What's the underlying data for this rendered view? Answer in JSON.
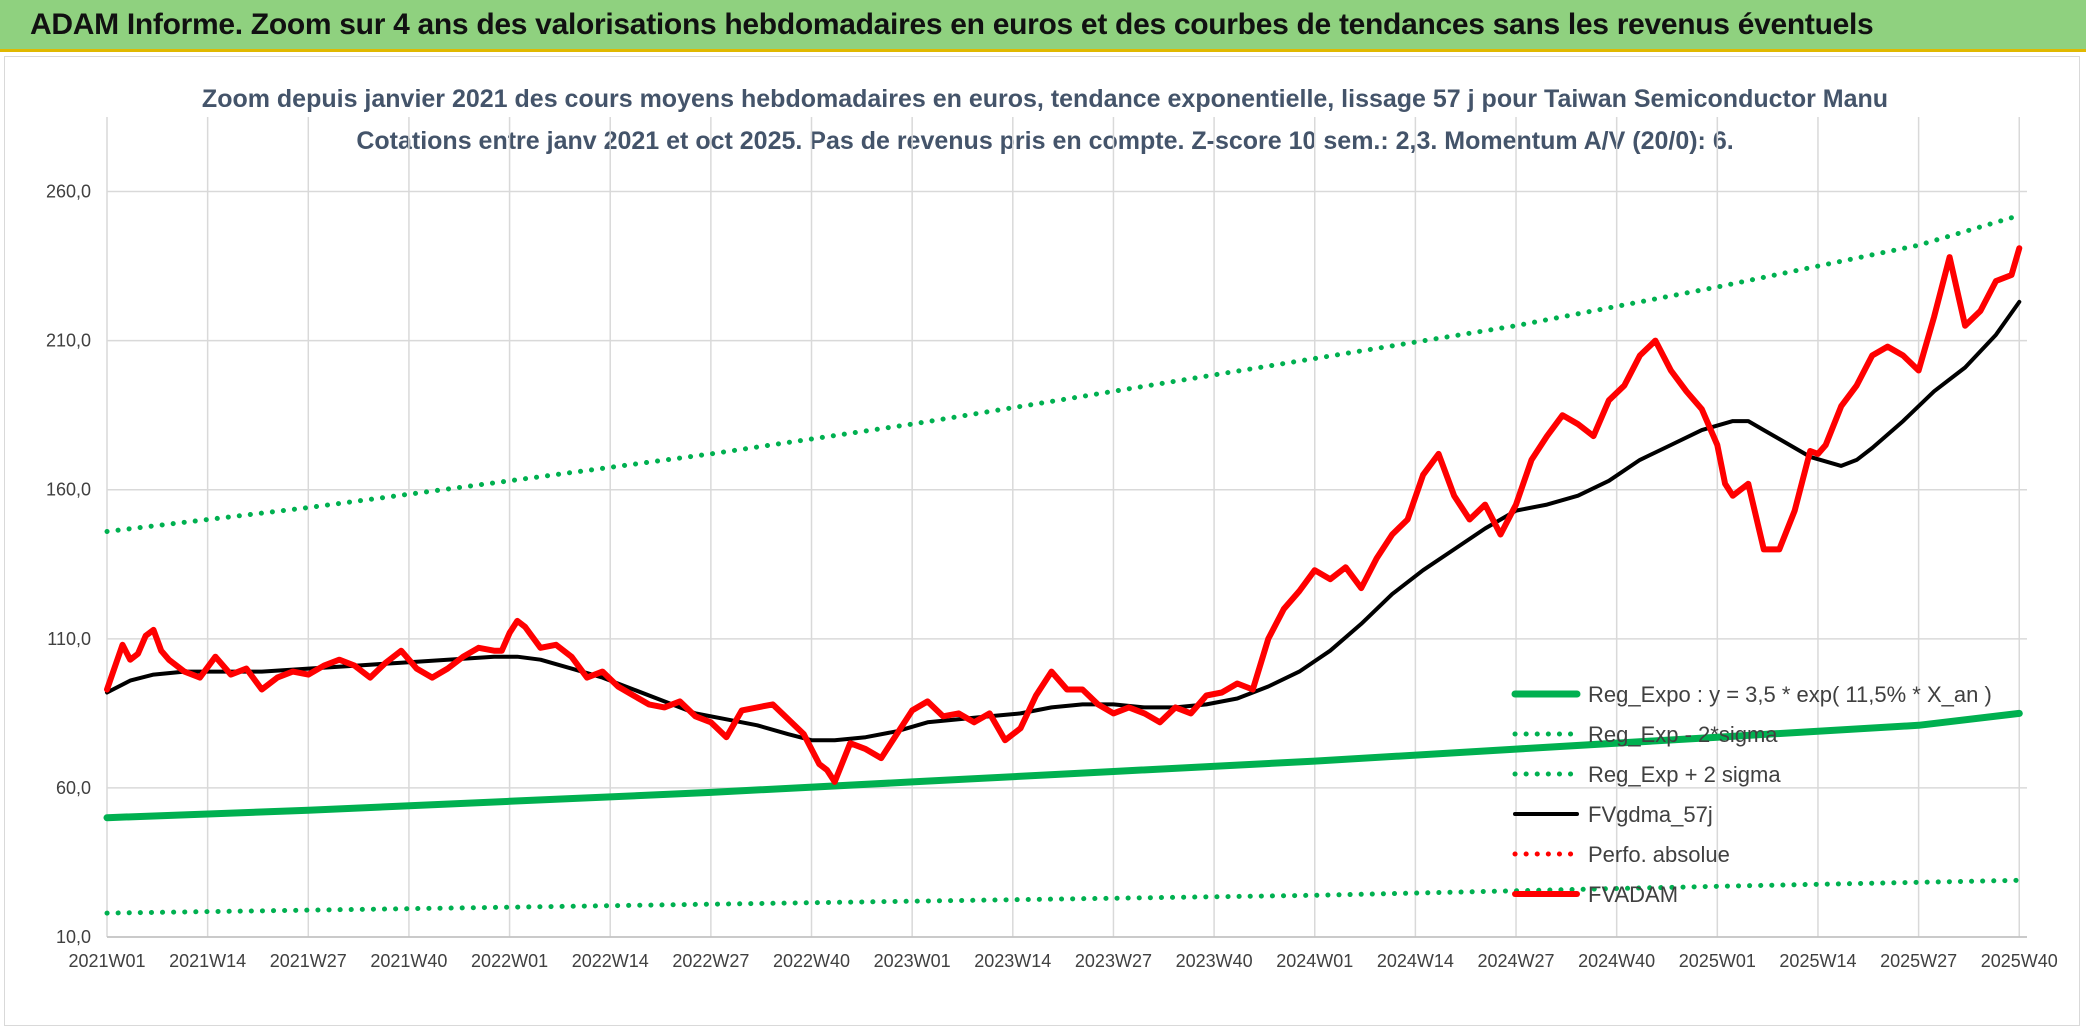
{
  "banner": {
    "title": "ADAM Informe. Zoom sur 4 ans des valorisations hebdomadaires en euros et des courbes de tendances sans les revenus éventuels"
  },
  "chart_data": {
    "type": "line",
    "title": "Zoom depuis janvier 2021 des cours moyens hebdomadaires en euros, tendance exponentielle, lissage 57 j pour Taiwan Semiconductor Manu",
    "subtitle": "Cotations entre janv 2021 et oct 2025. Pas de revenus pris en compte. Z-score 10 sem.: 2,3. Momentum A/V (20/0): 6.",
    "xlabel": "",
    "ylabel": "",
    "ylim": [
      10,
      285
    ],
    "yticks": [
      10,
      60,
      110,
      160,
      210,
      260
    ],
    "ytick_labels": [
      "10,0",
      "60,0",
      "110,0",
      "160,0",
      "210,0",
      "260,0"
    ],
    "x_range": [
      0,
      248
    ],
    "xticks": [
      0,
      13,
      26,
      39,
      52,
      65,
      78,
      91,
      104,
      117,
      130,
      143,
      156,
      169,
      182,
      195,
      208,
      221,
      234,
      247
    ],
    "xtick_labels": [
      "2021W01",
      "2021W14",
      "2021W27",
      "2021W40",
      "2022W01",
      "2022W14",
      "2022W27",
      "2022W40",
      "2023W01",
      "2023W14",
      "2023W27",
      "2023W40",
      "2024W01",
      "2024W14",
      "2024W27",
      "2024W40",
      "2025W01",
      "2025W14",
      "2025W27",
      "2025W40"
    ],
    "grid": true,
    "legend_position": "bottom-right",
    "series": [
      {
        "name": "Reg_Expo : y = 3,5 * exp( 11,5% *  X_an )",
        "style": "solid-thick",
        "color": "#00b050",
        "x": [
          0,
          26,
          52,
          78,
          104,
          130,
          156,
          182,
          208,
          234,
          247
        ],
        "y": [
          50,
          52.5,
          55.5,
          58.5,
          62,
          65.5,
          69,
          73,
          77,
          81,
          85
        ]
      },
      {
        "name": "Reg_Exp - 2*sigma",
        "style": "dotted",
        "color": "#00b050",
        "x": [
          0,
          52,
          104,
          156,
          208,
          247
        ],
        "y": [
          18,
          20,
          22,
          24,
          27,
          29
        ]
      },
      {
        "name": "Reg_Exp + 2 sigma",
        "style": "dotted",
        "color": "#00b050",
        "x": [
          0,
          26,
          52,
          78,
          104,
          130,
          156,
          182,
          208,
          234,
          247
        ],
        "y": [
          146,
          154,
          163,
          172,
          182,
          193,
          204,
          215,
          228,
          242,
          252
        ]
      },
      {
        "name": "FVgdma_57j",
        "style": "solid",
        "color": "#000000",
        "x": [
          0,
          3,
          6,
          10,
          14,
          20,
          26,
          32,
          38,
          44,
          50,
          53,
          56,
          60,
          64,
          68,
          72,
          76,
          80,
          84,
          88,
          91,
          94,
          98,
          102,
          106,
          110,
          114,
          118,
          122,
          126,
          130,
          134,
          138,
          142,
          146,
          150,
          154,
          158,
          162,
          166,
          170,
          174,
          178,
          182,
          186,
          190,
          194,
          198,
          202,
          206,
          210,
          212,
          214,
          216,
          220,
          224,
          226,
          228,
          232,
          236,
          240,
          244,
          247
        ],
        "y": [
          92,
          96,
          98,
          99,
          99,
          99,
          100,
          101,
          102,
          103,
          104,
          104,
          103,
          100,
          97,
          93,
          89,
          85,
          83,
          81,
          78,
          76,
          76,
          77,
          79,
          82,
          83,
          84,
          85,
          87,
          88,
          88,
          87,
          87,
          88,
          90,
          94,
          99,
          106,
          115,
          125,
          133,
          140,
          147,
          153,
          155,
          158,
          163,
          170,
          175,
          180,
          183,
          183,
          180,
          177,
          171,
          168,
          170,
          174,
          183,
          193,
          201,
          212,
          223
        ]
      },
      {
        "name": "Perfo. absolue",
        "style": "dotted",
        "color": "#ff0000",
        "x": [],
        "y": []
      },
      {
        "name": "FVADAM",
        "style": "solid-thick",
        "color": "#ff0000",
        "x": [
          0,
          2,
          3,
          4,
          5,
          6,
          7,
          8,
          10,
          12,
          14,
          16,
          18,
          20,
          22,
          24,
          26,
          28,
          30,
          32,
          34,
          36,
          38,
          40,
          42,
          44,
          46,
          48,
          50,
          51,
          52,
          53,
          54,
          56,
          58,
          60,
          62,
          64,
          66,
          68,
          70,
          72,
          74,
          76,
          78,
          80,
          82,
          84,
          86,
          88,
          90,
          91,
          92,
          93,
          94,
          96,
          98,
          100,
          102,
          104,
          106,
          108,
          110,
          112,
          114,
          116,
          118,
          120,
          122,
          124,
          126,
          128,
          130,
          132,
          134,
          136,
          138,
          140,
          142,
          144,
          146,
          148,
          150,
          152,
          154,
          156,
          158,
          160,
          162,
          164,
          166,
          168,
          170,
          172,
          174,
          176,
          178,
          180,
          182,
          184,
          186,
          188,
          190,
          192,
          194,
          196,
          198,
          200,
          202,
          204,
          206,
          208,
          209,
          210,
          211,
          212,
          214,
          216,
          218,
          220,
          221,
          222,
          224,
          226,
          227,
          228,
          230,
          232,
          234,
          236,
          238,
          240,
          242,
          244,
          246,
          247
        ],
        "y": [
          93,
          108,
          103,
          105,
          111,
          113,
          106,
          103,
          99,
          97,
          104,
          98,
          100,
          93,
          97,
          99,
          98,
          101,
          103,
          101,
          97,
          102,
          106,
          100,
          97,
          100,
          104,
          107,
          106,
          106,
          112,
          116,
          114,
          107,
          108,
          104,
          97,
          99,
          94,
          91,
          88,
          87,
          89,
          84,
          82,
          77,
          86,
          87,
          88,
          83,
          78,
          73,
          68,
          66,
          62,
          75,
          73,
          70,
          78,
          86,
          89,
          84,
          85,
          82,
          85,
          76,
          80,
          91,
          99,
          93,
          93,
          88,
          85,
          87,
          85,
          82,
          87,
          85,
          91,
          92,
          95,
          93,
          110,
          120,
          126,
          133,
          130,
          134,
          127,
          137,
          145,
          150,
          165,
          172,
          158,
          150,
          155,
          145,
          155,
          170,
          178,
          185,
          182,
          178,
          190,
          195,
          205,
          210,
          200,
          193,
          187,
          175,
          162,
          158,
          160,
          162,
          140,
          140,
          153,
          173,
          172,
          175,
          188,
          195,
          200,
          205,
          208,
          205,
          200,
          218,
          238,
          215,
          220,
          230,
          232,
          241
        ]
      }
    ]
  }
}
